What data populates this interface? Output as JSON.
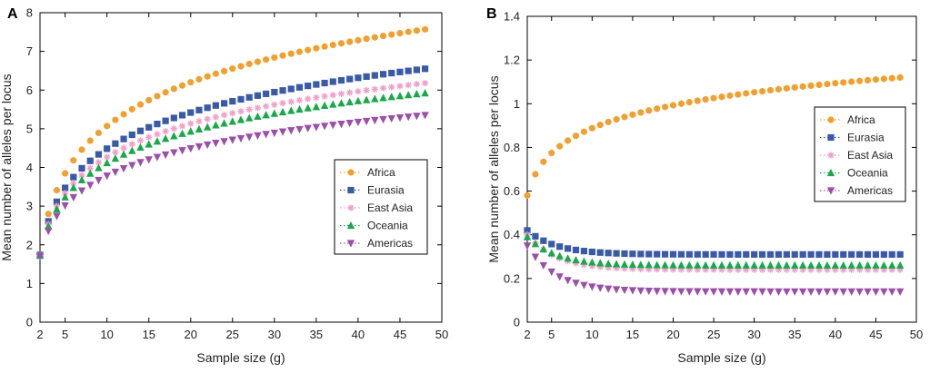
{
  "legend_labels": [
    "Africa",
    "Eurasia",
    "East Asia",
    "Oceania",
    "Americas"
  ],
  "chart_data": [
    {
      "type": "scatter",
      "panel_label": "A",
      "xlabel": "Sample size (g)",
      "ylabel": "Mean number of alleles per locus",
      "xlim": [
        2,
        50
      ],
      "ylim": [
        0,
        8
      ],
      "xticks": [
        2,
        5,
        10,
        15,
        20,
        25,
        30,
        35,
        40,
        45,
        50
      ],
      "yticks": [
        0,
        1,
        2,
        3,
        4,
        5,
        6,
        7,
        8
      ],
      "legend": "middle-right",
      "grid": false,
      "series": [
        {
          "name": "Africa",
          "color": "#f0a030",
          "marker": "circle",
          "start": {
            "x": 2,
            "y": 1.75
          },
          "end": {
            "x": 48,
            "y": 7.57
          }
        },
        {
          "name": "Eurasia",
          "color": "#3a5aa8",
          "marker": "square",
          "start": {
            "x": 2,
            "y": 1.74
          },
          "end": {
            "x": 48,
            "y": 6.55
          }
        },
        {
          "name": "East Asia",
          "color": "#f0a0c8",
          "marker": "asterisk",
          "start": {
            "x": 2,
            "y": 1.73
          },
          "end": {
            "x": 48,
            "y": 6.18
          }
        },
        {
          "name": "Oceania",
          "color": "#1aa84a",
          "marker": "triangle-up",
          "start": {
            "x": 2,
            "y": 1.72
          },
          "end": {
            "x": 48,
            "y": 5.92
          }
        },
        {
          "name": "Americas",
          "color": "#9a50a8",
          "marker": "triangle-down",
          "start": {
            "x": 2,
            "y": 1.7
          },
          "end": {
            "x": 48,
            "y": 5.35
          }
        }
      ]
    },
    {
      "type": "scatter",
      "panel_label": "B",
      "xlabel": "Sample size (g)",
      "ylabel": "Mean number of alleles per locus",
      "xlim": [
        2,
        50
      ],
      "ylim": [
        0,
        1.4
      ],
      "xticks": [
        2,
        5,
        10,
        15,
        20,
        25,
        30,
        35,
        40,
        45,
        50
      ],
      "yticks": [
        0,
        0.2,
        0.4,
        0.6,
        0.8,
        1,
        1.2,
        1.4
      ],
      "legend": "top-right",
      "grid": false,
      "series": [
        {
          "name": "Africa",
          "color": "#f0a030",
          "marker": "circle",
          "start": {
            "x": 2,
            "y": 0.58
          },
          "end": {
            "x": 48,
            "y": 1.12
          }
        },
        {
          "name": "Eurasia",
          "color": "#3a5aa8",
          "marker": "square",
          "start": {
            "x": 2,
            "y": 0.42
          },
          "end": {
            "x": 48,
            "y": 0.31
          }
        },
        {
          "name": "East Asia",
          "color": "#f0a0c8",
          "marker": "asterisk",
          "start": {
            "x": 2,
            "y": 0.4
          },
          "end": {
            "x": 48,
            "y": 0.24
          }
        },
        {
          "name": "Oceania",
          "color": "#1aa84a",
          "marker": "triangle-up",
          "start": {
            "x": 2,
            "y": 0.39
          },
          "end": {
            "x": 48,
            "y": 0.26
          }
        },
        {
          "name": "Americas",
          "color": "#9a50a8",
          "marker": "triangle-down",
          "start": {
            "x": 2,
            "y": 0.35
          },
          "end": {
            "x": 48,
            "y": 0.14
          }
        }
      ]
    }
  ]
}
